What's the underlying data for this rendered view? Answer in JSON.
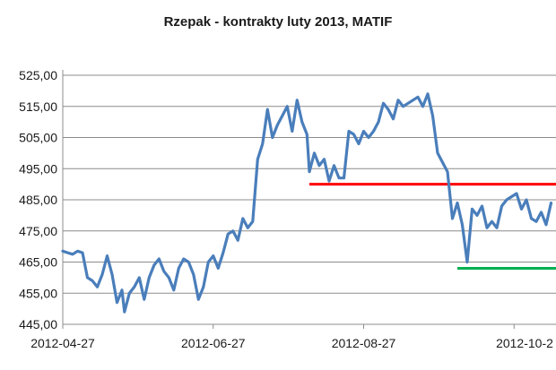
{
  "chart_data": {
    "type": "line",
    "title": "Rzepak - kontrakty luty 2013, MATIF",
    "xlabel": "",
    "ylabel": "",
    "ylim": [
      445,
      525
    ],
    "y_ticks": [
      "525,00",
      "515,00",
      "505,00",
      "495,00",
      "485,00",
      "475,00",
      "465,00",
      "455,00",
      "445,00"
    ],
    "x_ticks": [
      "2012-04-27",
      "2012-06-27",
      "2012-08-27",
      "2012-10-2"
    ],
    "xlim": [
      "2012-04-27",
      "2012-11-13"
    ],
    "grid": true,
    "legend": "none",
    "series": [
      {
        "color": "#4a7ebb",
        "points": [
          [
            "2012-04-27",
            468.5
          ],
          [
            "2012-04-29",
            468
          ],
          [
            "2012-05-01",
            467.5
          ],
          [
            "2012-05-03",
            468.5
          ],
          [
            "2012-05-05",
            468
          ],
          [
            "2012-05-07",
            460
          ],
          [
            "2012-05-09",
            459
          ],
          [
            "2012-05-11",
            457
          ],
          [
            "2012-05-13",
            461
          ],
          [
            "2012-05-15",
            467
          ],
          [
            "2012-05-17",
            461
          ],
          [
            "2012-05-19",
            452
          ],
          [
            "2012-05-21",
            456
          ],
          [
            "2012-05-22",
            449
          ],
          [
            "2012-05-24",
            455
          ],
          [
            "2012-05-26",
            457
          ],
          [
            "2012-05-28",
            460
          ],
          [
            "2012-05-30",
            453
          ],
          [
            "2012-06-01",
            460
          ],
          [
            "2012-06-03",
            464
          ],
          [
            "2012-06-05",
            466
          ],
          [
            "2012-06-07",
            462
          ],
          [
            "2012-06-09",
            460
          ],
          [
            "2012-06-11",
            456
          ],
          [
            "2012-06-13",
            463
          ],
          [
            "2012-06-15",
            466
          ],
          [
            "2012-06-17",
            465
          ],
          [
            "2012-06-19",
            461
          ],
          [
            "2012-06-21",
            453
          ],
          [
            "2012-06-23",
            457
          ],
          [
            "2012-06-25",
            465
          ],
          [
            "2012-06-27",
            467
          ],
          [
            "2012-06-29",
            463
          ],
          [
            "2012-07-01",
            468
          ],
          [
            "2012-07-03",
            474
          ],
          [
            "2012-07-05",
            475
          ],
          [
            "2012-07-07",
            472
          ],
          [
            "2012-07-09",
            479
          ],
          [
            "2012-07-11",
            476
          ],
          [
            "2012-07-13",
            478
          ],
          [
            "2012-07-15",
            498
          ],
          [
            "2012-07-17",
            503
          ],
          [
            "2012-07-19",
            514
          ],
          [
            "2012-07-21",
            505
          ],
          [
            "2012-07-23",
            509
          ],
          [
            "2012-07-25",
            512
          ],
          [
            "2012-07-27",
            515
          ],
          [
            "2012-07-29",
            507
          ],
          [
            "2012-07-31",
            517
          ],
          [
            "2012-08-02",
            510
          ],
          [
            "2012-08-04",
            506
          ],
          [
            "2012-08-05",
            494
          ],
          [
            "2012-08-07",
            500
          ],
          [
            "2012-08-09",
            496
          ],
          [
            "2012-08-11",
            498
          ],
          [
            "2012-08-13",
            491
          ],
          [
            "2012-08-15",
            496
          ],
          [
            "2012-08-17",
            492
          ],
          [
            "2012-08-19",
            492
          ],
          [
            "2012-08-21",
            507
          ],
          [
            "2012-08-23",
            506
          ],
          [
            "2012-08-25",
            503
          ],
          [
            "2012-08-27",
            507
          ],
          [
            "2012-08-29",
            505
          ],
          [
            "2012-08-31",
            507
          ],
          [
            "2012-09-02",
            510
          ],
          [
            "2012-09-04",
            516
          ],
          [
            "2012-09-06",
            514
          ],
          [
            "2012-09-08",
            511
          ],
          [
            "2012-09-10",
            517
          ],
          [
            "2012-09-12",
            515
          ],
          [
            "2012-09-14",
            516
          ],
          [
            "2012-09-16",
            517
          ],
          [
            "2012-09-18",
            518
          ],
          [
            "2012-09-20",
            515
          ],
          [
            "2012-09-22",
            519
          ],
          [
            "2012-09-24",
            512
          ],
          [
            "2012-09-26",
            500
          ],
          [
            "2012-09-28",
            497
          ],
          [
            "2012-09-30",
            494
          ],
          [
            "2012-10-02",
            479
          ],
          [
            "2012-10-04",
            484
          ],
          [
            "2012-10-06",
            477
          ],
          [
            "2012-10-08",
            465
          ],
          [
            "2012-10-10",
            482
          ],
          [
            "2012-10-12",
            480
          ],
          [
            "2012-10-14",
            483
          ],
          [
            "2012-10-16",
            476
          ],
          [
            "2012-10-18",
            478
          ],
          [
            "2012-10-20",
            476
          ],
          [
            "2012-10-22",
            483
          ],
          [
            "2012-10-24",
            485
          ],
          [
            "2012-10-26",
            486
          ],
          [
            "2012-10-28",
            487
          ],
          [
            "2012-10-30",
            482
          ],
          [
            "2012-11-01",
            485
          ],
          [
            "2012-11-03",
            479
          ],
          [
            "2012-11-05",
            478
          ],
          [
            "2012-11-07",
            481
          ],
          [
            "2012-11-09",
            477
          ],
          [
            "2012-11-11",
            484
          ]
        ]
      }
    ],
    "reference_lines": [
      {
        "color": "#ff0000",
        "y": 490,
        "x_start": "2012-08-05",
        "x_end": "2012-11-13"
      },
      {
        "color": "#00b050",
        "y": 463,
        "x_start": "2012-10-04",
        "x_end": "2012-11-13"
      }
    ]
  }
}
